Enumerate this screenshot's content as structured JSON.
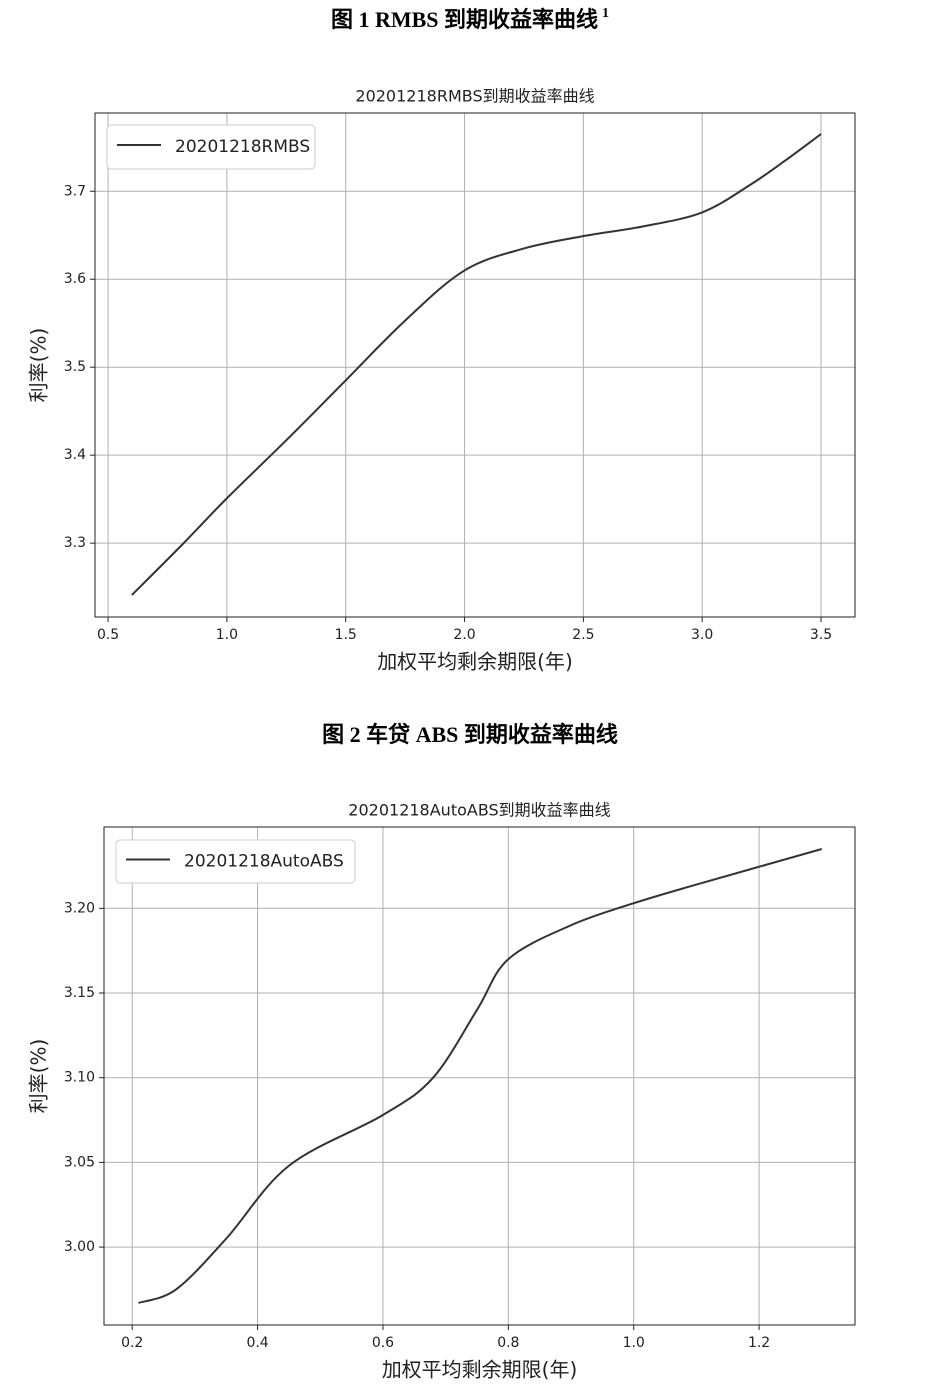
{
  "chart_data": [
    {
      "type": "line",
      "caption": "图 1 RMBS 到期收益率曲线",
      "caption_sup": "1",
      "title": "20201218RMBS到期收益率曲线",
      "xlabel": "加权平均剩余期限(年)",
      "ylabel": "利率(%)",
      "x": [
        0.6,
        0.8,
        1.0,
        1.25,
        1.5,
        1.75,
        2.0,
        2.25,
        2.5,
        2.75,
        3.0,
        3.2,
        3.35,
        3.5
      ],
      "series": [
        {
          "name": "20201218RMBS",
          "color": "#333333",
          "values": [
            3.241,
            3.295,
            3.351,
            3.417,
            3.485,
            3.553,
            3.61,
            3.635,
            3.649,
            3.66,
            3.676,
            3.707,
            3.735,
            3.765
          ]
        }
      ],
      "xlim": [
        0.445,
        3.643
      ],
      "ylim": [
        3.216,
        3.789
      ],
      "xticks": [
        0.5,
        {
          "value": 1,
          "label": "1.0"
        },
        1.5,
        {
          "value": 2,
          "label": "2.0"
        },
        2.5,
        {
          "value": 3,
          "label": "3.0"
        },
        3.5
      ],
      "yticks": [
        3.3,
        3.4,
        3.5,
        3.6,
        3.7
      ],
      "grid": true,
      "legend": "upper-left"
    },
    {
      "type": "line",
      "caption": "图 2 车贷 ABS 到期收益率曲线",
      "title": "20201218AutoABS到期收益率曲线",
      "xlabel": "加权平均剩余期限(年)",
      "ylabel": "利率(%)",
      "x": [
        0.21,
        0.27,
        0.35,
        0.45,
        0.6,
        0.68,
        0.75,
        0.8,
        0.9,
        1.0,
        1.1,
        1.3
      ],
      "series": [
        {
          "name": "20201218AutoABS",
          "color": "#333333",
          "values": [
            2.967,
            2.975,
            3.005,
            3.048,
            3.078,
            3.1,
            3.14,
            3.17,
            3.19,
            3.203,
            3.214,
            3.235
          ]
        }
      ],
      "xlim": [
        0.155,
        1.353
      ],
      "ylim": [
        2.954,
        3.248
      ],
      "xticks": [
        0.2,
        0.4,
        0.6,
        0.8,
        {
          "value": 1,
          "label": "1.0"
        },
        1.2
      ],
      "yticks": [
        {
          "value": 3,
          "label": "3.00"
        },
        {
          "value": 3.05,
          "label": "3.05"
        },
        {
          "value": 3.1,
          "label": "3.10"
        },
        {
          "value": 3.15,
          "label": "3.15"
        },
        {
          "value": 3.2,
          "label": "3.20"
        }
      ],
      "grid": true,
      "legend": "upper-left"
    }
  ]
}
